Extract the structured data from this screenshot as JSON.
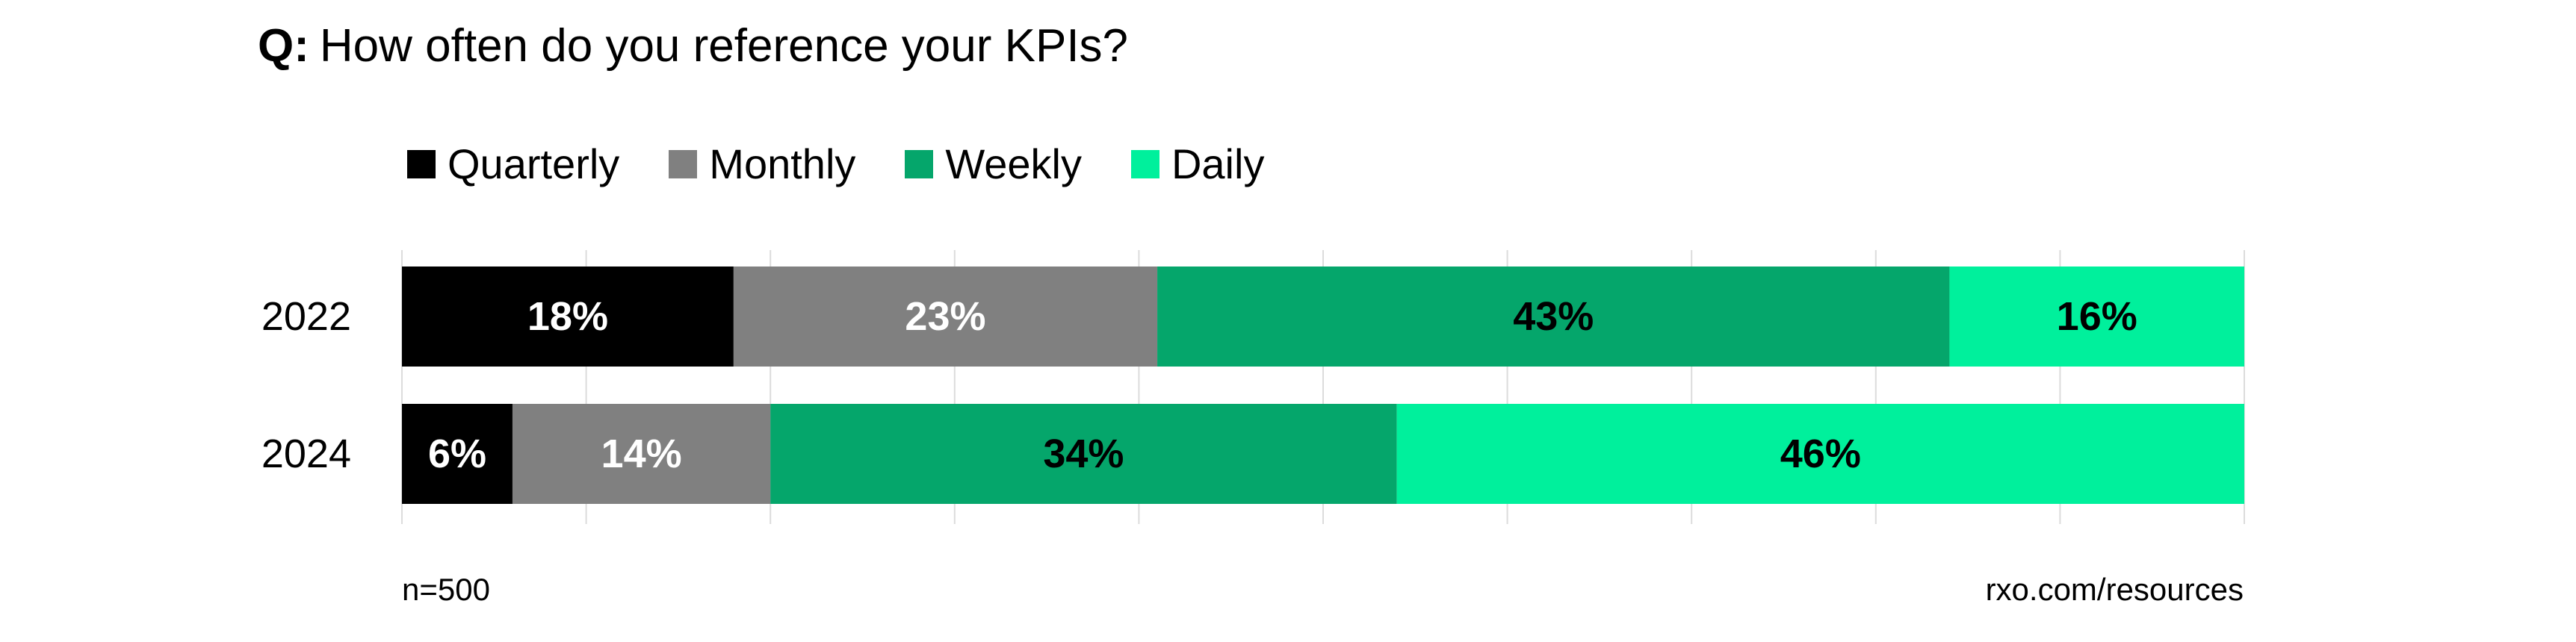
{
  "title": {
    "prefix": "Q:",
    "text": "How often do you reference your KPIs?"
  },
  "legend": [
    {
      "label": "Quarterly",
      "color": "#000000"
    },
    {
      "label": "Monthly",
      "color": "#808080"
    },
    {
      "label": "Weekly",
      "color": "#05a66b"
    },
    {
      "label": "Daily",
      "color": "#00f09c"
    }
  ],
  "chart_data": {
    "type": "bar",
    "orientation": "horizontal",
    "stacked": true,
    "categories": [
      "2022",
      "2024"
    ],
    "series": [
      {
        "name": "Quarterly",
        "values": [
          18,
          6
        ],
        "labels": [
          "18%",
          "6%"
        ],
        "color": "#000000",
        "label_color": "#ffffff"
      },
      {
        "name": "Monthly",
        "values": [
          23,
          14
        ],
        "labels": [
          "23%",
          "14%"
        ],
        "color": "#808080",
        "label_color": "#ffffff"
      },
      {
        "name": "Weekly",
        "values": [
          43,
          34
        ],
        "labels": [
          "43%",
          "34%"
        ],
        "color": "#05a66b",
        "label_color": "#000000"
      },
      {
        "name": "Daily",
        "values": [
          16,
          46
        ],
        "labels": [
          "16%",
          "46%"
        ],
        "color": "#00f09c",
        "label_color": "#000000"
      }
    ],
    "xlim": [
      0,
      100
    ],
    "grid": true,
    "legend_position": "top-left"
  },
  "footer": {
    "sample": "n=500",
    "source": "rxo.com/resources"
  }
}
